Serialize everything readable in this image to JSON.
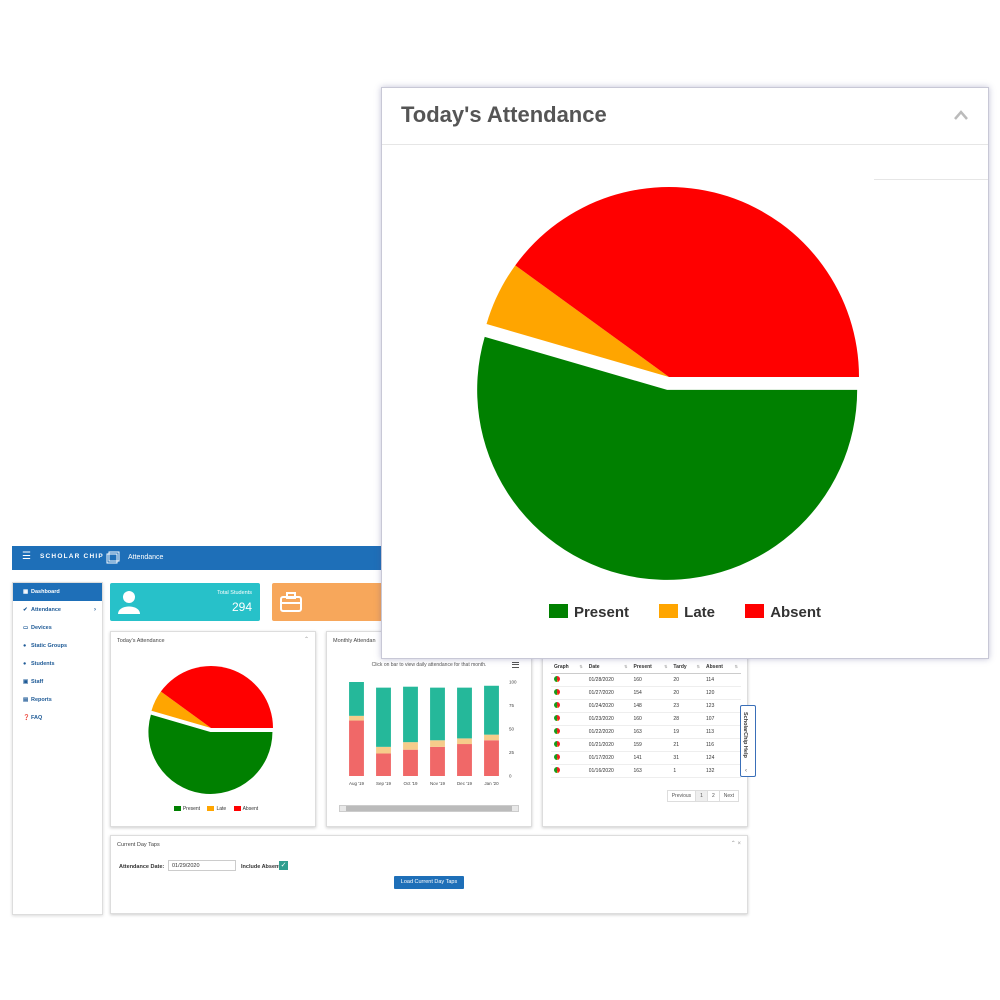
{
  "app": {
    "logo_text": "SCHOLAR CHIP",
    "module_title": "Attendance"
  },
  "sidebar": {
    "items": [
      {
        "label": "Dashboard",
        "icon": "grid-icon",
        "active": true
      },
      {
        "label": "Attendance",
        "icon": "check-icon",
        "has_children": true
      },
      {
        "label": "Devices",
        "icon": "laptop-icon"
      },
      {
        "label": "Static Groups",
        "icon": "users-icon"
      },
      {
        "label": "Students",
        "icon": "user-icon"
      },
      {
        "label": "Staff",
        "icon": "briefcase-icon"
      },
      {
        "label": "Reports",
        "icon": "file-icon"
      },
      {
        "label": "FAQ",
        "icon": "question-icon"
      }
    ]
  },
  "tiles": {
    "total_students_label": "Total Students",
    "total_students_value": "294"
  },
  "today_panel": {
    "title": "Today's Attendance",
    "legend": [
      "Present",
      "Late",
      "Absent"
    ]
  },
  "monthly_panel": {
    "title": "Monthly Attendan",
    "hint": "Click on bar to view daily attendance for that month.",
    "chart_data": {
      "type": "bar",
      "stacked": true,
      "categories": [
        "Aug '19",
        "Sep '19",
        "Oct '19",
        "Nov '19",
        "Dec '19",
        "Jan '20"
      ],
      "series": [
        {
          "values": [
            59,
            24,
            28,
            31,
            34,
            38
          ],
          "color": "#f06868"
        },
        {
          "values": [
            5,
            7,
            8,
            7,
            6,
            6
          ],
          "color": "#f6cc8a"
        },
        {
          "values": [
            36,
            63,
            59,
            56,
            54,
            52
          ],
          "color": "#25b89a"
        }
      ],
      "y_ticks": [
        "0",
        "25",
        "50",
        "75",
        "100"
      ],
      "ylim": [
        0,
        100
      ]
    }
  },
  "table_panel": {
    "headers": [
      "Graph",
      "Date",
      "Present",
      "Tardy",
      "Absent"
    ],
    "rows": [
      {
        "date": "01/28/2020",
        "present": "160",
        "tardy": "20",
        "absent": "114"
      },
      {
        "date": "01/27/2020",
        "present": "154",
        "tardy": "20",
        "absent": "120"
      },
      {
        "date": "01/24/2020",
        "present": "148",
        "tardy": "23",
        "absent": "123"
      },
      {
        "date": "01/23/2020",
        "present": "160",
        "tardy": "28",
        "absent": "107"
      },
      {
        "date": "01/22/2020",
        "present": "163",
        "tardy": "19",
        "absent": "113"
      },
      {
        "date": "01/21/2020",
        "present": "159",
        "tardy": "21",
        "absent": "116"
      },
      {
        "date": "01/17/2020",
        "present": "141",
        "tardy": "31",
        "absent": "124"
      },
      {
        "date": "01/16/2020",
        "present": "163",
        "tardy": "1",
        "absent": "132"
      }
    ],
    "pager": {
      "previous": "Previous",
      "page1": "1",
      "page2": "2",
      "next": "Next"
    }
  },
  "taps_panel": {
    "title": "Current Day Taps",
    "date_label": "Attendance Date:",
    "date_value": "01/29/2020",
    "include_absent_label": "Include Absent",
    "include_absent_checked": true,
    "button_label": "Load Current Day Taps"
  },
  "help_tab": {
    "label": "ScholarChip Help"
  },
  "popup": {
    "title": "Today's Attendance",
    "chart_data": {
      "type": "pie",
      "slices": [
        {
          "name": "Present",
          "value": 54.5,
          "color": "#008000",
          "exploded": true
        },
        {
          "name": "Late",
          "value": 5.5,
          "color": "#FFA500"
        },
        {
          "name": "Absent",
          "value": 40,
          "color": "#FF0000"
        }
      ]
    },
    "legend": [
      {
        "label": "Present",
        "color": "#008000"
      },
      {
        "label": "Late",
        "color": "#FFA500"
      },
      {
        "label": "Absent",
        "color": "#FF0000"
      }
    ]
  }
}
